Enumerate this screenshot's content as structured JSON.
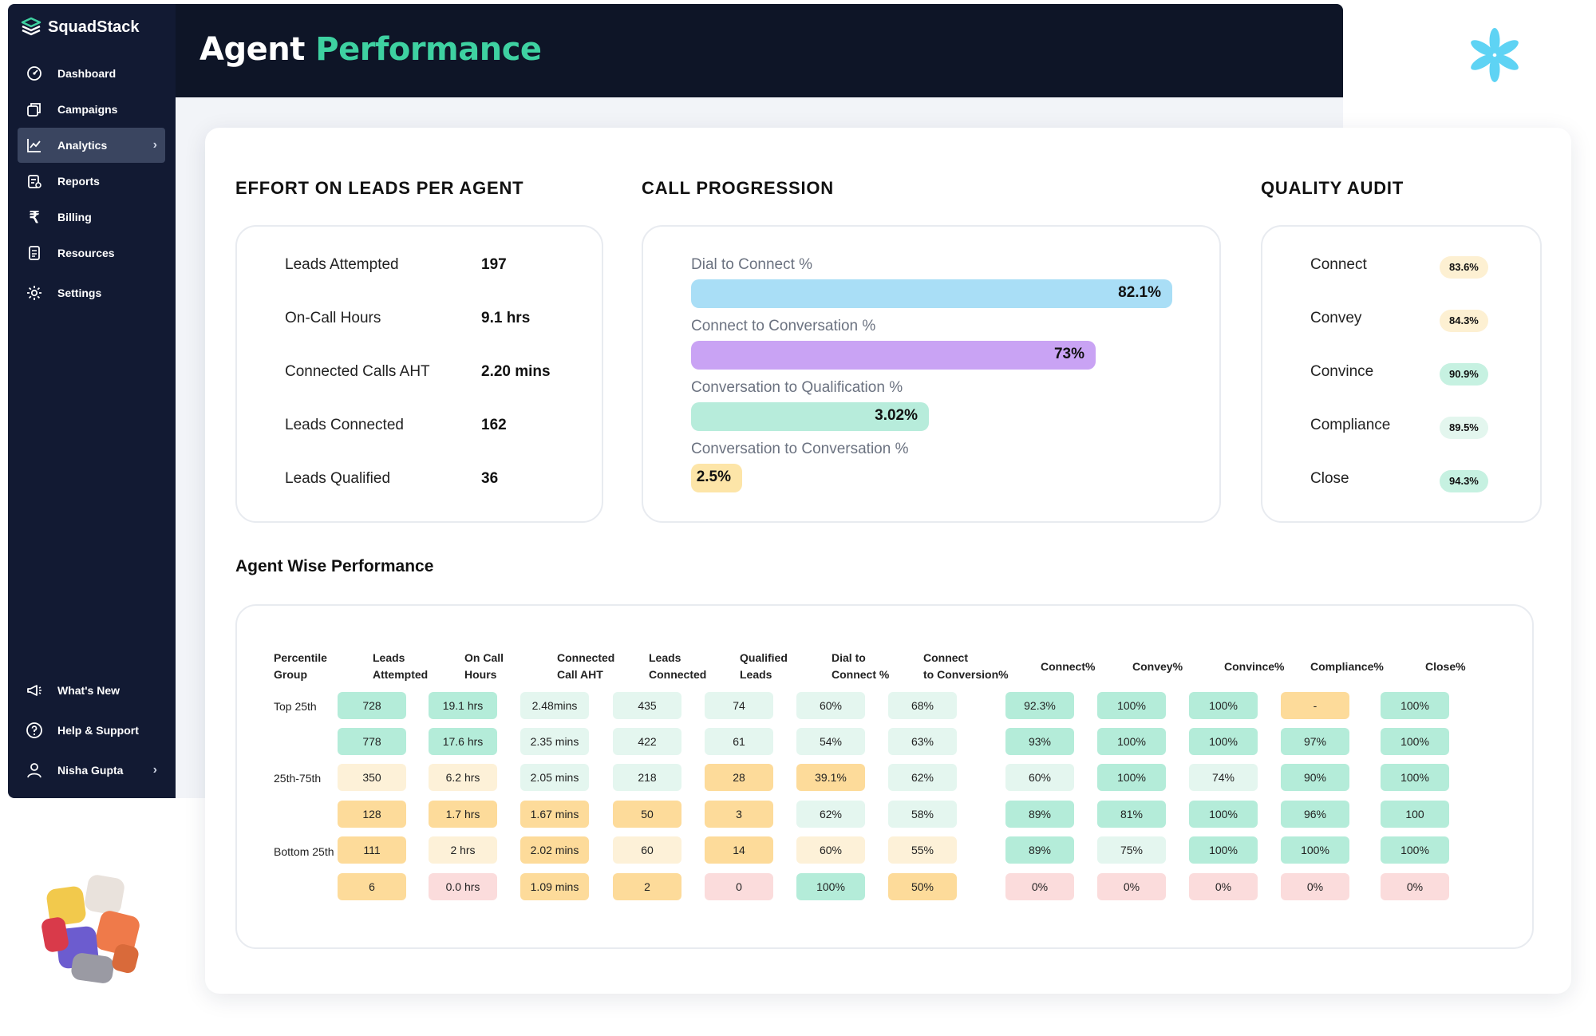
{
  "app": {
    "brand": "SquadStack",
    "page_title_part1": "Agent",
    "page_title_part2": "Performance"
  },
  "sidebar": {
    "items": [
      {
        "label": "Dashboard",
        "icon": "dashboard-icon"
      },
      {
        "label": "Campaigns",
        "icon": "campaigns-icon"
      },
      {
        "label": "Analytics",
        "icon": "analytics-icon",
        "active": true
      },
      {
        "label": "Reports",
        "icon": "reports-icon"
      },
      {
        "label": "Billing",
        "icon": "rupee-icon"
      },
      {
        "label": "Resources",
        "icon": "resources-icon"
      },
      {
        "label": "Settings",
        "icon": "gear-icon"
      }
    ],
    "bottom": [
      {
        "label": "What's New",
        "icon": "megaphone-icon"
      },
      {
        "label": "Help & Support",
        "icon": "help-icon"
      },
      {
        "label": "Nisha Gupta",
        "icon": "user-icon"
      }
    ]
  },
  "effort": {
    "title": "EFFORT ON LEADS PER AGENT",
    "rows": [
      {
        "label": "Leads Attempted",
        "value": "197"
      },
      {
        "label": "On-Call Hours",
        "value": "9.1 hrs"
      },
      {
        "label": "Connected Calls AHT",
        "value": "2.20 mins"
      },
      {
        "label": "Leads Connected",
        "value": "162"
      },
      {
        "label": "Leads Qualified",
        "value": "36"
      }
    ]
  },
  "progression": {
    "title": "CALL PROGRESSION",
    "items": [
      {
        "label": "Dial to Connect %",
        "value": "82.1%",
        "fraction": 0.821,
        "color": "#a9def6"
      },
      {
        "label": "Connect to Conversation %",
        "value": "73%",
        "fraction": 0.73,
        "color": "#c9a3f4"
      },
      {
        "label": "Conversation to Qualification %",
        "value": "3.02%",
        "fraction": 0.0302,
        "color": "#b7ecdb"
      },
      {
        "label": "Conversation to Conversation %",
        "value": "2.5%",
        "fraction": 0.025,
        "color": "#fde5a8"
      }
    ]
  },
  "quality": {
    "title": "QUALITY AUDIT",
    "items": [
      {
        "label": "Connect",
        "value": "83.6%",
        "color": "#fdf0d2"
      },
      {
        "label": "Convey",
        "value": "84.3%",
        "color": "#fdf0d2"
      },
      {
        "label": "Convince",
        "value": "90.9%",
        "color": "#c6f1e1"
      },
      {
        "label": "Compliance",
        "value": "89.5%",
        "color": "#e3f6ee"
      },
      {
        "label": "Close",
        "value": "94.3%",
        "color": "#c6f1e1"
      }
    ]
  },
  "agent_table": {
    "title": "Agent Wise Performance",
    "headers": [
      [
        "Percentile",
        "Group"
      ],
      [
        "Leads",
        "Attempted"
      ],
      [
        "On Call",
        "Hours"
      ],
      [
        "Connected",
        "Call AHT"
      ],
      [
        "Leads",
        "Connected"
      ],
      [
        "Qualified",
        "Leads"
      ],
      [
        "Dial to",
        "Connect %"
      ],
      [
        "Connect",
        "to Conversion%"
      ],
      [
        "Connect%"
      ],
      [
        "Convey%"
      ],
      [
        "Convince%"
      ],
      [
        "Compliance%"
      ],
      [
        "Close%"
      ]
    ],
    "groups": [
      "Top 25th",
      "25th-75th",
      "Bottom 25th"
    ],
    "rows": [
      [
        "728",
        "19.1 hrs",
        "2.48mins",
        "435",
        "74",
        "60%",
        "68%",
        "92.3%",
        "100%",
        "100%",
        "-",
        "100%"
      ],
      [
        "778",
        "17.6 hrs",
        "2.35 mins",
        "422",
        "61",
        "54%",
        "63%",
        "93%",
        "100%",
        "100%",
        "97%",
        "100%"
      ],
      [
        "350",
        "6.2 hrs",
        "2.05 mins",
        "218",
        "28",
        "39.1%",
        "62%",
        "60%",
        "100%",
        "74%",
        "90%",
        "100%"
      ],
      [
        "128",
        "1.7 hrs",
        "1.67 mins",
        "50",
        "3",
        "62%",
        "58%",
        "89%",
        "81%",
        "100%",
        "96%",
        "100"
      ],
      [
        "111",
        "2 hrs",
        "2.02 mins",
        "60",
        "14",
        "60%",
        "55%",
        "89%",
        "75%",
        "100%",
        "100%",
        "100%"
      ],
      [
        "6",
        "0.0 hrs",
        "1.09 mins",
        "2",
        "0",
        "100%",
        "50%",
        "0%",
        "0%",
        "0%",
        "0%",
        "0%"
      ]
    ],
    "colors": [
      [
        "#b4ecd9",
        "#b4ecd9",
        "#e4f6ef",
        "#e4f6ef",
        "#e4f6ef",
        "#e4f6ef",
        "#e4f6ef",
        "#b4ecd9",
        "#b4ecd9",
        "#b4ecd9",
        "#fddb9a",
        "#b4ecd9"
      ],
      [
        "#b4ecd9",
        "#b4ecd9",
        "#e4f6ef",
        "#e4f6ef",
        "#e4f6ef",
        "#e4f6ef",
        "#e4f6ef",
        "#b4ecd9",
        "#b4ecd9",
        "#b4ecd9",
        "#b4ecd9",
        "#b4ecd9"
      ],
      [
        "#fdf1d8",
        "#fdf1d8",
        "#e4f6ef",
        "#e4f6ef",
        "#fddb9a",
        "#fddb9a",
        "#e4f6ef",
        "#e4f6ef",
        "#b4ecd9",
        "#e4f6ef",
        "#b4ecd9",
        "#b4ecd9"
      ],
      [
        "#fddb9a",
        "#fddb9a",
        "#fddb9a",
        "#fddb9a",
        "#fddb9a",
        "#e4f6ef",
        "#e4f6ef",
        "#b4ecd9",
        "#b4ecd9",
        "#b4ecd9",
        "#b4ecd9",
        "#b4ecd9"
      ],
      [
        "#fddb9a",
        "#fdf1d8",
        "#fddb9a",
        "#fdf1d8",
        "#fddb9a",
        "#fdf1d8",
        "#fdf1d8",
        "#b4ecd9",
        "#e4f6ef",
        "#b4ecd9",
        "#b4ecd9",
        "#b4ecd9"
      ],
      [
        "#fddb9a",
        "#fbdcdc",
        "#fddb9a",
        "#fddb9a",
        "#fbdcdc",
        "#b4ecd9",
        "#fddb9a",
        "#fbdcdc",
        "#fbdcdc",
        "#fbdcdc",
        "#fbdcdc",
        "#fbdcdc"
      ]
    ]
  }
}
